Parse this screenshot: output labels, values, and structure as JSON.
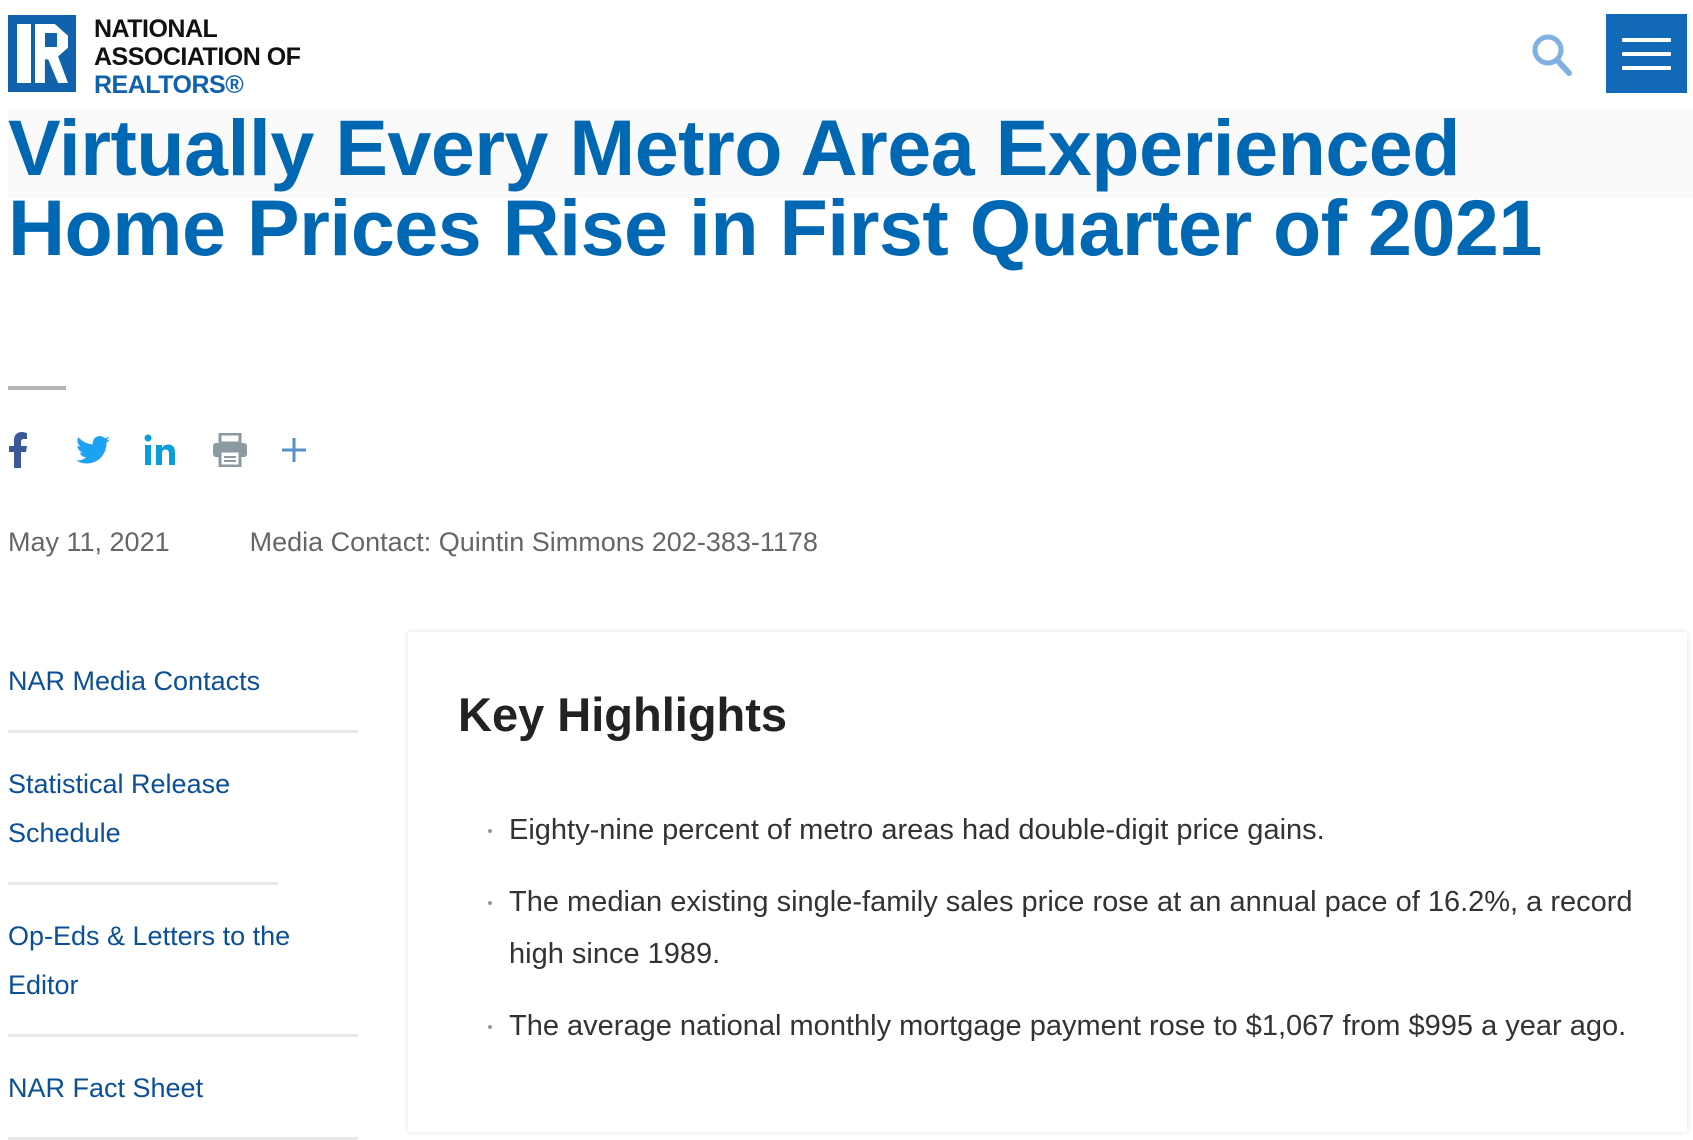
{
  "header": {
    "logo": {
      "line1": "NATIONAL",
      "line2": "ASSOCIATION OF",
      "line3": "REALTORS®"
    },
    "search_icon": "search-icon",
    "menu_icon": "hamburger-menu-icon"
  },
  "article": {
    "title": "Virtually Every Metro Area Experienced Home Prices Rise in First Quarter of 2021",
    "date": "May 11, 2021",
    "media_contact": "Media Contact: Quintin Simmons 202-383-1178"
  },
  "social": [
    {
      "icon": "facebook-icon",
      "color": "#3b5998"
    },
    {
      "icon": "twitter-icon",
      "color": "#1da1f2"
    },
    {
      "icon": "linkedin-icon",
      "color": "#0a9ed8"
    },
    {
      "icon": "print-icon",
      "color": "#8a9aa0"
    },
    {
      "icon": "plus-icon",
      "color": "#5b8fc7"
    }
  ],
  "sidebar": {
    "items": [
      {
        "label": "NAR Media Contacts"
      },
      {
        "label": "Statistical Release Schedule"
      },
      {
        "label": "Op-Eds & Letters to the Editor"
      },
      {
        "label": "NAR Fact Sheet"
      }
    ]
  },
  "highlights": {
    "heading": "Key Highlights",
    "items": [
      "Eighty-nine percent of metro areas had double-digit price gains.",
      "The median existing single-family sales price rose at an annual pace of 16.2%, a record high since 1989.",
      "The average national monthly mortgage payment rose to $1,067 from $995 a year ago."
    ]
  },
  "colors": {
    "brand_blue": "#0068b3",
    "link_blue": "#0b4f96",
    "menu_blue": "#1269b7"
  }
}
